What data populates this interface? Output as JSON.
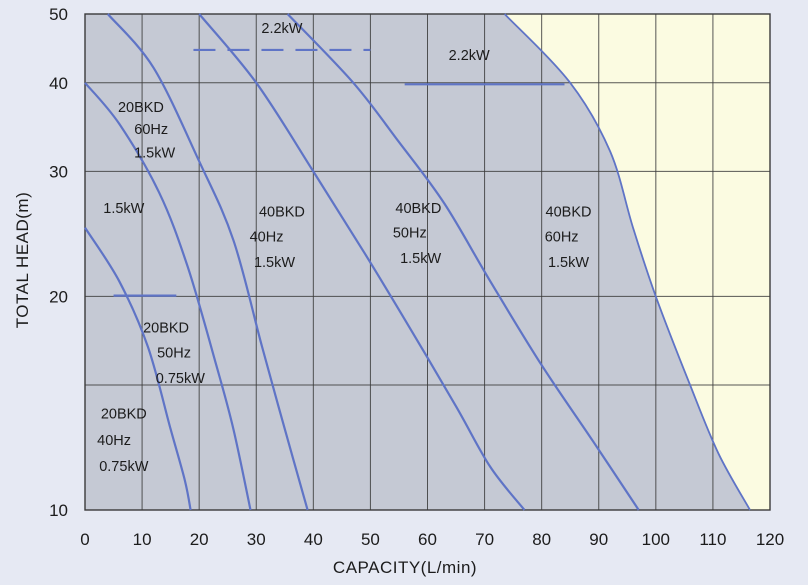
{
  "chart_data": {
    "type": "line",
    "xlabel": "CAPACITY(L/min)",
    "ylabel": "TOTAL HEAD(m)",
    "x_scale": "linear",
    "y_scale": "log",
    "xlim": [
      0,
      120
    ],
    "ylim": [
      10,
      50
    ],
    "x_ticks": [
      0,
      10,
      20,
      30,
      40,
      50,
      60,
      70,
      80,
      90,
      100,
      110,
      120
    ],
    "y_ticks": [
      10,
      20,
      30,
      40,
      50
    ],
    "grid": true,
    "colors": {
      "background": "#e6e9f3",
      "plot_light": "#fbfbe1",
      "plot_shaded": "#c5c9d4",
      "grid": "#3a3a3a",
      "curve": "#5f74c6",
      "text": "#1c1c1c"
    },
    "envelope": {
      "points": [
        [
          73.5,
          50
        ],
        [
          85,
          40
        ],
        [
          92,
          32
        ],
        [
          96,
          25
        ],
        [
          100,
          20
        ],
        [
          106,
          15
        ],
        [
          111,
          12
        ],
        [
          116.5,
          10
        ]
      ]
    },
    "series": [
      {
        "points": [
          [
            0,
            25
          ],
          [
            6,
            21
          ],
          [
            11,
            17
          ],
          [
            15,
            13
          ],
          [
            17.5,
            11
          ],
          [
            18.5,
            10
          ]
        ]
      },
      {
        "points": [
          [
            0,
            40
          ],
          [
            6,
            35
          ],
          [
            13,
            28
          ],
          [
            18,
            22
          ],
          [
            23,
            16
          ],
          [
            26,
            13
          ],
          [
            29,
            10
          ]
        ]
      },
      {
        "points": [
          [
            4,
            50
          ],
          [
            12,
            42
          ],
          [
            20,
            31
          ],
          [
            26,
            24
          ],
          [
            31,
            17
          ],
          [
            35,
            13
          ],
          [
            39,
            10
          ]
        ]
      },
      {
        "points": [
          [
            20,
            50
          ],
          [
            30,
            40
          ],
          [
            40,
            30
          ],
          [
            49,
            23
          ],
          [
            57,
            18
          ],
          [
            65,
            14
          ],
          [
            71,
            11.5
          ],
          [
            77,
            10
          ]
        ]
      },
      {
        "points": [
          [
            35.5,
            50
          ],
          [
            47,
            40
          ],
          [
            55,
            33
          ],
          [
            63,
            27
          ],
          [
            71,
            21
          ],
          [
            80,
            16
          ],
          [
            89,
            12.5
          ],
          [
            97,
            10
          ]
        ]
      }
    ],
    "limit_lines": [
      {
        "x": [
          19,
          50
        ],
        "y": 44.5,
        "style": "dashed"
      },
      {
        "x": [
          56,
          84
        ],
        "y": 39.8,
        "style": "solid"
      },
      {
        "x": [
          5,
          16
        ],
        "y": 20.05,
        "style": "solid"
      }
    ],
    "annotations": [
      {
        "text": "2.2kW",
        "x": 34.5,
        "y": 47
      },
      {
        "text": "2.2kW",
        "x": 67.3,
        "y": 43.1
      },
      {
        "text": "20BKD",
        "x": 9.8,
        "y": 36.4
      },
      {
        "text": "60Hz",
        "x": 11.6,
        "y": 33.9
      },
      {
        "text": "1.5kW",
        "x": 12.2,
        "y": 31.4
      },
      {
        "text": "1.5kW",
        "x": 6.8,
        "y": 26.2
      },
      {
        "text": "40BKD",
        "x": 34.5,
        "y": 25.9
      },
      {
        "text": "40Hz",
        "x": 31.8,
        "y": 23.9
      },
      {
        "text": "1.5kW",
        "x": 33.2,
        "y": 22
      },
      {
        "text": "40BKD",
        "x": 58.4,
        "y": 26.2
      },
      {
        "text": "50Hz",
        "x": 56.9,
        "y": 24.2
      },
      {
        "text": "1.5kW",
        "x": 58.8,
        "y": 22.3
      },
      {
        "text": "40BKD",
        "x": 84.7,
        "y": 25.9
      },
      {
        "text": "60Hz",
        "x": 83.5,
        "y": 23.9
      },
      {
        "text": "1.5kW",
        "x": 84.7,
        "y": 22
      },
      {
        "text": "20BKD",
        "x": 14.2,
        "y": 17.8
      },
      {
        "text": "50Hz",
        "x": 15.6,
        "y": 16.4
      },
      {
        "text": "0.75kW",
        "x": 16.7,
        "y": 15.1
      },
      {
        "text": "20BKD",
        "x": 6.8,
        "y": 13.45
      },
      {
        "text": "40Hz",
        "x": 5.1,
        "y": 12.35
      },
      {
        "text": "0.75kW",
        "x": 6.8,
        "y": 11.35
      }
    ]
  }
}
